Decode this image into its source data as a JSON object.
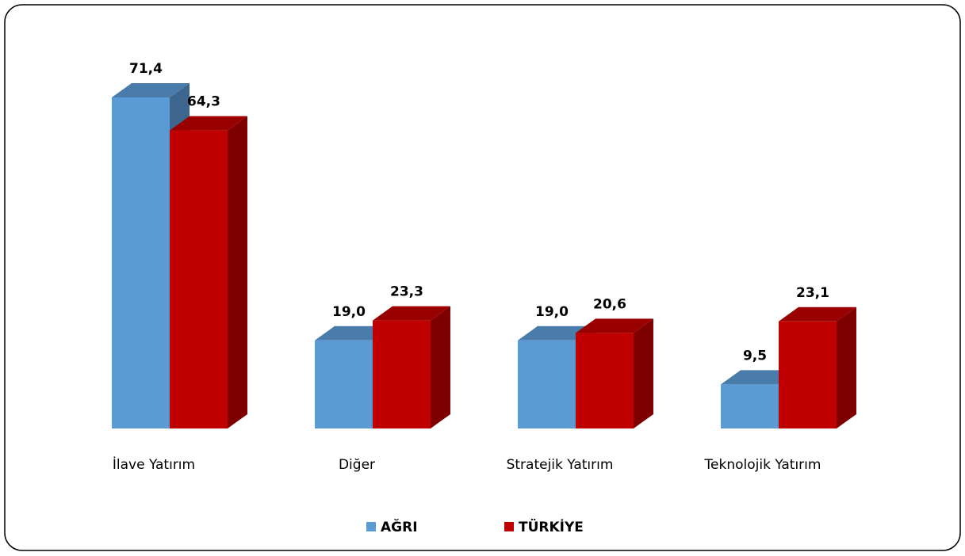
{
  "chart_data": {
    "type": "bar3d",
    "categories": [
      "İlave Yatırım",
      "Diğer",
      "Stratejik Yatırım",
      "Teknolojik Yatırım"
    ],
    "series": [
      {
        "name": "AĞRI",
        "color": "#5b9bd5",
        "values": [
          71.4,
          19.0,
          19.0,
          9.5
        ],
        "value_labels": [
          "71,4",
          "19,0",
          "19,0",
          "9,5"
        ]
      },
      {
        "name": "TÜRKİYE",
        "color": "#c00000",
        "values": [
          64.3,
          23.3,
          20.6,
          23.1
        ],
        "value_labels": [
          "64,3",
          "23,3",
          "20,6",
          "23,1"
        ]
      }
    ],
    "legend": "bottom"
  }
}
